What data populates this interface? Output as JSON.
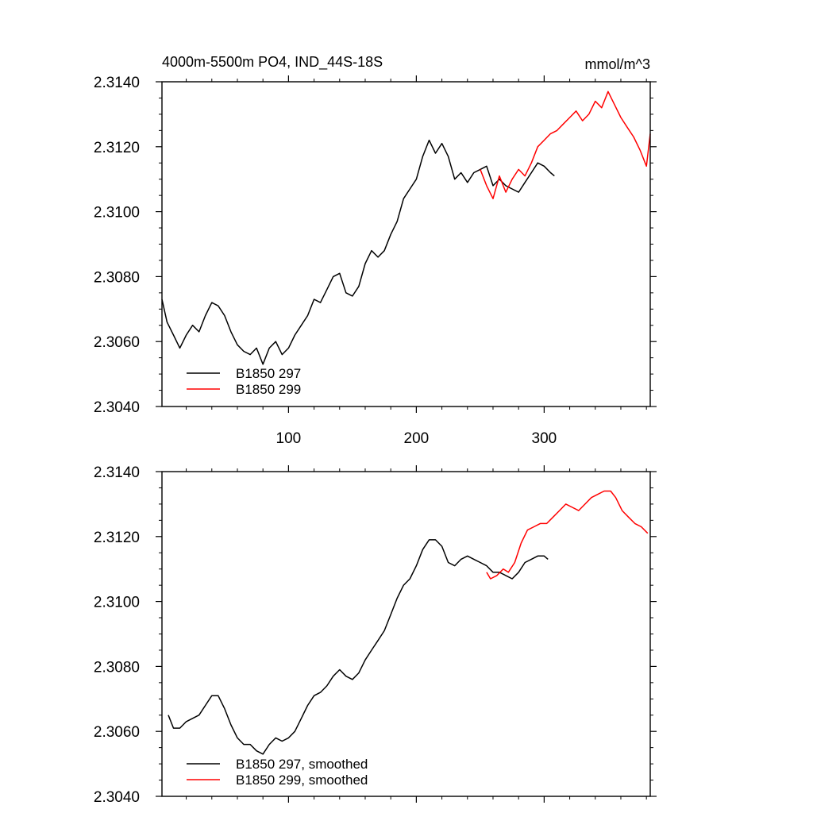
{
  "chart_data": [
    {
      "type": "line",
      "title": "4000m-5500m PO4, IND_44S-18S",
      "units": "mmol/m^3",
      "xlim": [
        1,
        383
      ],
      "ylim": [
        2.304,
        2.314
      ],
      "xticks": [
        100,
        200,
        300
      ],
      "yticks": [
        "2.3040",
        "2.3060",
        "2.3080",
        "2.3100",
        "2.3120",
        "2.3140"
      ],
      "legend": "bottom-left",
      "series": [
        {
          "name": "B1850 297",
          "color": "#000000",
          "x": [
            1,
            5,
            10,
            15,
            20,
            25,
            30,
            35,
            40,
            45,
            50,
            55,
            60,
            65,
            70,
            75,
            80,
            85,
            90,
            95,
            100,
            105,
            110,
            115,
            120,
            125,
            130,
            135,
            140,
            145,
            150,
            155,
            160,
            165,
            170,
            175,
            180,
            185,
            190,
            195,
            200,
            205,
            210,
            215,
            220,
            225,
            230,
            235,
            240,
            245,
            250,
            255,
            260,
            265,
            270,
            275,
            280,
            285,
            290,
            295,
            300,
            305,
            308
          ],
          "y": [
            2.3073,
            2.3066,
            2.3062,
            2.3058,
            2.3062,
            2.3065,
            2.3063,
            2.3068,
            2.3072,
            2.3071,
            2.3068,
            2.3063,
            2.3059,
            2.3057,
            2.3056,
            2.3058,
            2.3053,
            2.3058,
            2.306,
            2.3056,
            2.3058,
            2.3062,
            2.3065,
            2.3068,
            2.3073,
            2.3072,
            2.3076,
            2.308,
            2.3081,
            2.3075,
            2.3074,
            2.3077,
            2.3084,
            2.3088,
            2.3086,
            2.3088,
            2.3093,
            2.3097,
            2.3104,
            2.3107,
            2.311,
            2.3117,
            2.3122,
            2.3118,
            2.3121,
            2.3117,
            2.311,
            2.3112,
            2.3109,
            2.3112,
            2.3113,
            2.3114,
            2.3108,
            2.311,
            2.3108,
            2.3107,
            2.3106,
            2.3109,
            2.3112,
            2.3115,
            2.3114,
            2.3112,
            2.3111
          ]
        },
        {
          "name": "B1850 299",
          "color": "#ff0000",
          "x": [
            250,
            255,
            260,
            265,
            270,
            275,
            280,
            285,
            290,
            295,
            300,
            305,
            310,
            315,
            320,
            325,
            330,
            335,
            340,
            345,
            350,
            355,
            360,
            365,
            370,
            375,
            380,
            383
          ],
          "y": [
            2.3113,
            2.3108,
            2.3104,
            2.3111,
            2.3106,
            2.311,
            2.3113,
            2.3111,
            2.3115,
            2.312,
            2.3122,
            2.3124,
            2.3125,
            2.3127,
            2.3129,
            2.3131,
            2.3128,
            2.313,
            2.3134,
            2.3132,
            2.3137,
            2.3133,
            2.3129,
            2.3126,
            2.3123,
            2.3119,
            2.3114,
            2.3124
          ]
        }
      ]
    },
    {
      "type": "line",
      "xlim": [
        1,
        383
      ],
      "ylim": [
        2.304,
        2.314
      ],
      "yticks": [
        "2.3040",
        "2.3060",
        "2.3080",
        "2.3100",
        "2.3120",
        "2.3140"
      ],
      "legend": "bottom-left",
      "series": [
        {
          "name": "B1850 297, smoothed",
          "color": "#000000",
          "x": [
            6,
            10,
            15,
            20,
            25,
            30,
            35,
            40,
            45,
            50,
            55,
            60,
            65,
            70,
            75,
            80,
            85,
            90,
            95,
            100,
            105,
            110,
            115,
            120,
            125,
            130,
            135,
            140,
            145,
            150,
            155,
            160,
            165,
            170,
            175,
            180,
            185,
            190,
            195,
            200,
            205,
            210,
            215,
            220,
            225,
            230,
            235,
            240,
            245,
            250,
            255,
            260,
            265,
            270,
            275,
            280,
            285,
            290,
            295,
            300,
            303
          ],
          "y": [
            2.3065,
            2.3061,
            2.3061,
            2.3063,
            2.3064,
            2.3065,
            2.3068,
            2.3071,
            2.3071,
            2.3067,
            2.3062,
            2.3058,
            2.3056,
            2.3056,
            2.3054,
            2.3053,
            2.3056,
            2.3058,
            2.3057,
            2.3058,
            2.306,
            2.3064,
            2.3068,
            2.3071,
            2.3072,
            2.3074,
            2.3077,
            2.3079,
            2.3077,
            2.3076,
            2.3078,
            2.3082,
            2.3085,
            2.3088,
            2.3091,
            2.3096,
            2.3101,
            2.3105,
            2.3107,
            2.3111,
            2.3116,
            2.3119,
            2.3119,
            2.3117,
            2.3112,
            2.3111,
            2.3113,
            2.3114,
            2.3113,
            2.3112,
            2.3111,
            2.3109,
            2.3109,
            2.3108,
            2.3107,
            2.3109,
            2.3112,
            2.3113,
            2.3114,
            2.3114,
            2.3113
          ]
        },
        {
          "name": "B1850 299, smoothed",
          "color": "#ff0000",
          "x": [
            255,
            258,
            263,
            268,
            272,
            277,
            282,
            287,
            292,
            297,
            302,
            307,
            312,
            317,
            322,
            327,
            332,
            337,
            342,
            347,
            352,
            356,
            361,
            366,
            371,
            376,
            381
          ],
          "y": [
            2.3109,
            2.3107,
            2.3108,
            2.311,
            2.3109,
            2.3112,
            2.3118,
            2.3122,
            2.3123,
            2.3124,
            2.3124,
            2.3126,
            2.3128,
            2.313,
            2.3129,
            2.3128,
            2.313,
            2.3132,
            2.3133,
            2.3134,
            2.3134,
            2.3132,
            2.3128,
            2.3126,
            2.3124,
            2.3123,
            2.3121
          ]
        }
      ]
    }
  ]
}
